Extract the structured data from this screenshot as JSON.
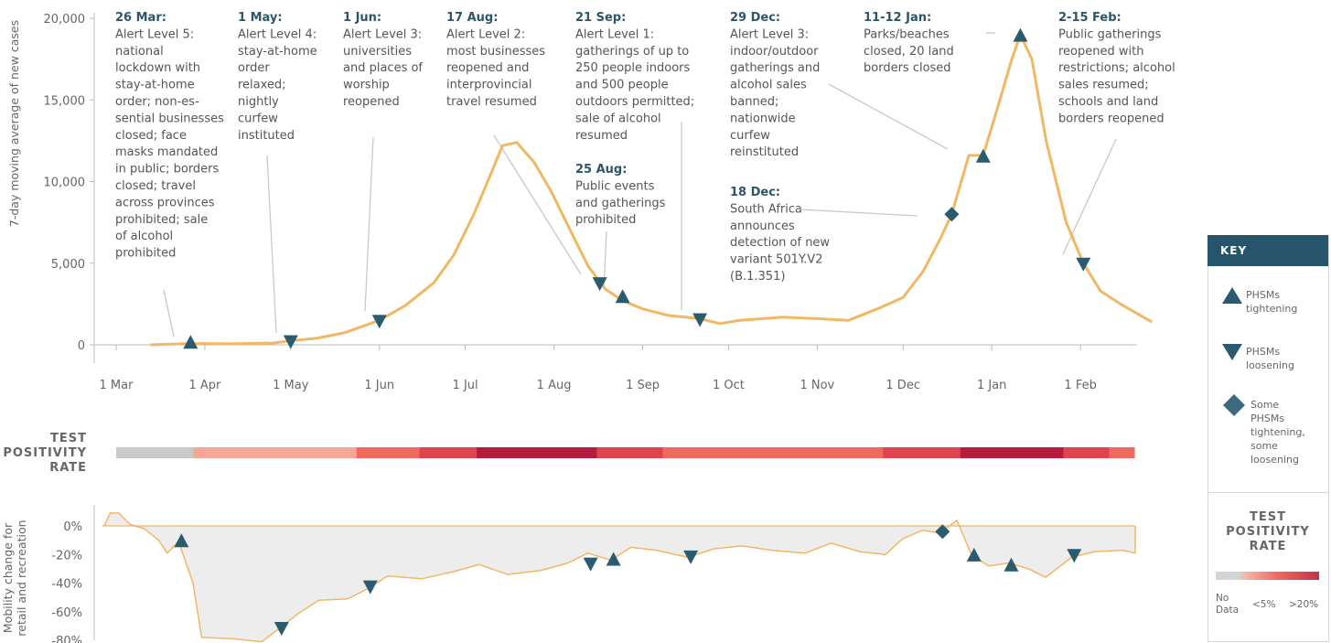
{
  "chart_data": [
    {
      "type": "line",
      "ylabel": "7-day moving average of new cases",
      "ylim": [
        0,
        20000
      ],
      "yticks": [
        {
          "v": 0,
          "label": "0"
        },
        {
          "v": 5000,
          "label": "5,000"
        },
        {
          "v": 10000,
          "label": "10,000"
        },
        {
          "v": 15000,
          "label": "15,000"
        },
        {
          "v": 20000,
          "label": "20,000"
        }
      ],
      "xlim": [
        "2020-03-01",
        "2021-02-28"
      ],
      "xticks": [
        {
          "date": "2020-03-01",
          "label": "1 Mar"
        },
        {
          "date": "2020-04-01",
          "label": "1 Apr"
        },
        {
          "date": "2020-05-01",
          "label": "1 May"
        },
        {
          "date": "2020-06-01",
          "label": "1 Jun"
        },
        {
          "date": "2020-07-01",
          "label": "1 Jul"
        },
        {
          "date": "2020-08-01",
          "label": "1 Aug"
        },
        {
          "date": "2020-09-01",
          "label": "1 Sep"
        },
        {
          "date": "2020-10-01",
          "label": "1 Oct"
        },
        {
          "date": "2020-11-01",
          "label": "1 Nov"
        },
        {
          "date": "2020-12-01",
          "label": "1 Dec"
        },
        {
          "date": "2021-01-01",
          "label": "1 Jan"
        },
        {
          "date": "2021-02-01",
          "label": "1 Feb"
        }
      ],
      "series": [
        {
          "color": "#f0b865",
          "points": [
            [
              "2020-03-13",
              0
            ],
            [
              "2020-03-26",
              80
            ],
            [
              "2020-04-10",
              60
            ],
            [
              "2020-04-25",
              110
            ],
            [
              "2020-05-01",
              250
            ],
            [
              "2020-05-10",
              400
            ],
            [
              "2020-05-20",
              750
            ],
            [
              "2020-06-01",
              1500
            ],
            [
              "2020-06-10",
              2400
            ],
            [
              "2020-06-20",
              3800
            ],
            [
              "2020-06-27",
              5500
            ],
            [
              "2020-07-04",
              8000
            ],
            [
              "2020-07-10",
              10500
            ],
            [
              "2020-07-14",
              12200
            ],
            [
              "2020-07-19",
              12400
            ],
            [
              "2020-07-25",
              11200
            ],
            [
              "2020-07-31",
              9400
            ],
            [
              "2020-08-07",
              6900
            ],
            [
              "2020-08-13",
              4800
            ],
            [
              "2020-08-19",
              3400
            ],
            [
              "2020-08-25",
              2700
            ],
            [
              "2020-09-01",
              2200
            ],
            [
              "2020-09-10",
              1800
            ],
            [
              "2020-09-21",
              1600
            ],
            [
              "2020-09-28",
              1300
            ],
            [
              "2020-10-05",
              1500
            ],
            [
              "2020-10-20",
              1700
            ],
            [
              "2020-11-01",
              1600
            ],
            [
              "2020-11-12",
              1500
            ],
            [
              "2020-11-22",
              2200
            ],
            [
              "2020-12-01",
              2900
            ],
            [
              "2020-12-08",
              4500
            ],
            [
              "2020-12-14",
              6500
            ],
            [
              "2020-12-18",
              8000
            ],
            [
              "2020-12-24",
              11600
            ],
            [
              "2020-12-29",
              11600
            ],
            [
              "2021-01-03",
              14500
            ],
            [
              "2021-01-08",
              17500
            ],
            [
              "2021-01-11",
              19000
            ],
            [
              "2021-01-15",
              17500
            ],
            [
              "2021-01-20",
              12500
            ],
            [
              "2021-01-27",
              7500
            ],
            [
              "2021-02-02",
              5000
            ],
            [
              "2021-02-08",
              3300
            ],
            [
              "2021-02-15",
              2500
            ],
            [
              "2021-02-22",
              1800
            ],
            [
              "2021-02-26",
              1400
            ]
          ]
        }
      ],
      "markers": [
        {
          "date": "2020-03-27",
          "value": 100,
          "type": "tightening"
        },
        {
          "date": "2020-05-01",
          "value": 250,
          "type": "loosening"
        },
        {
          "date": "2020-06-01",
          "value": 1500,
          "type": "loosening"
        },
        {
          "date": "2020-08-17",
          "value": 3800,
          "type": "loosening"
        },
        {
          "date": "2020-08-25",
          "value": 2900,
          "type": "tightening"
        },
        {
          "date": "2020-09-21",
          "value": 1600,
          "type": "loosening"
        },
        {
          "date": "2020-12-18",
          "value": 8000,
          "type": "mixed"
        },
        {
          "date": "2020-12-29",
          "value": 11500,
          "type": "tightening"
        },
        {
          "date": "2021-01-11",
          "value": 18900,
          "type": "tightening"
        },
        {
          "date": "2021-02-02",
          "value": 5000,
          "type": "loosening"
        }
      ],
      "annotations": [
        {
          "title": "26 Mar:",
          "lines": [
            "Alert Level 5:",
            "national",
            "lockdown with",
            "stay-at-home",
            "order; non-es-",
            "sential businesses",
            "closed; face",
            "masks mandated",
            "in public; borders",
            "closed; travel",
            "across provinces",
            "prohibited; sale",
            "of alcohol",
            "prohibited"
          ]
        },
        {
          "title": "1 May:",
          "lines": [
            "Alert Level 4:",
            "stay-at-home",
            "order",
            "relaxed;",
            "nightly",
            "curfew",
            "instituted"
          ]
        },
        {
          "title": "1 Jun:",
          "lines": [
            "Alert Level 3:",
            "universities",
            "and places of",
            "worship",
            "reopened"
          ]
        },
        {
          "title": "17 Aug:",
          "lines": [
            "Alert Level 2:",
            "most businesses",
            "reopened and",
            "interprovincial",
            "travel resumed"
          ]
        },
        {
          "title": "21 Sep:",
          "lines": [
            "Alert Level 1:",
            "gatherings of up to",
            "250 people indoors",
            "and 500 people",
            "outdoors permitted;",
            "sale of alcohol",
            "resumed"
          ]
        },
        {
          "title": "25 Aug:",
          "lines": [
            "Public events",
            "and gatherings",
            "prohibited"
          ]
        },
        {
          "title": "29 Dec:",
          "lines": [
            "Alert Level 3:",
            "indoor/outdoor",
            "gatherings and",
            "alcohol sales",
            "banned;",
            "nationwide",
            "curfew",
            "reinstituted"
          ]
        },
        {
          "title": "18 Dec:",
          "lines": [
            "South Africa",
            "announces",
            "detection of new",
            "variant 501Y.V2",
            "(B.1.351)"
          ]
        },
        {
          "title": "11-12 Jan:",
          "lines": [
            "Parks/beaches",
            "closed, 20 land",
            "borders closed"
          ]
        },
        {
          "title": "2-15 Feb:",
          "lines": [
            "Public gatherings",
            "reopened with",
            "restrictions; alcohol",
            "sales resumed;",
            "schools and land",
            "borders reopened"
          ]
        }
      ]
    },
    {
      "type": "heatmap",
      "title": "TEST POSITIVITY RATE",
      "segments": [
        {
          "start": "2020-03-01",
          "end": "2020-03-28",
          "color": "#c9c9c9"
        },
        {
          "start": "2020-03-28",
          "end": "2020-05-24",
          "color": "#f7a596"
        },
        {
          "start": "2020-05-24",
          "end": "2020-06-15",
          "color": "#ee6a5f"
        },
        {
          "start": "2020-06-15",
          "end": "2020-07-05",
          "color": "#e0444e"
        },
        {
          "start": "2020-07-05",
          "end": "2020-08-16",
          "color": "#b41c3f"
        },
        {
          "start": "2020-08-16",
          "end": "2020-09-08",
          "color": "#e0444e"
        },
        {
          "start": "2020-09-08",
          "end": "2020-11-24",
          "color": "#ee6a5f"
        },
        {
          "start": "2020-11-24",
          "end": "2020-12-21",
          "color": "#e0444e"
        },
        {
          "start": "2020-12-21",
          "end": "2021-01-26",
          "color": "#b41c3f"
        },
        {
          "start": "2021-01-26",
          "end": "2021-02-11",
          "color": "#e0444e"
        },
        {
          "start": "2021-02-11",
          "end": "2021-02-28",
          "color": "#ee6a5f"
        }
      ]
    },
    {
      "type": "area",
      "ylabel": "Mobility change for retail and recreation",
      "ylim": [
        -80,
        10
      ],
      "yticks": [
        {
          "v": 0,
          "label": "0%"
        },
        {
          "v": -20,
          "label": "-20%"
        },
        {
          "v": -40,
          "label": "-40%"
        },
        {
          "v": -60,
          "label": "-60%"
        },
        {
          "v": -80,
          "label": "-80%"
        }
      ],
      "series": [
        {
          "color": "#f0b865",
          "points": [
            [
              "2020-03-01",
              0
            ],
            [
              "2020-03-03",
              9
            ],
            [
              "2020-03-06",
              9
            ],
            [
              "2020-03-10",
              1
            ],
            [
              "2020-03-15",
              -2
            ],
            [
              "2020-03-20",
              -10
            ],
            [
              "2020-03-23",
              -19
            ],
            [
              "2020-03-27",
              -11
            ],
            [
              "2020-04-01",
              -40
            ],
            [
              "2020-04-04",
              -78
            ],
            [
              "2020-04-15",
              -79
            ],
            [
              "2020-04-25",
              -81
            ],
            [
              "2020-05-01",
              -72
            ],
            [
              "2020-05-08",
              -61
            ],
            [
              "2020-05-15",
              -52
            ],
            [
              "2020-05-25",
              -51
            ],
            [
              "2020-06-01",
              -44
            ],
            [
              "2020-06-08",
              -35
            ],
            [
              "2020-06-20",
              -37
            ],
            [
              "2020-07-01",
              -32
            ],
            [
              "2020-07-10",
              -27
            ],
            [
              "2020-07-20",
              -34
            ],
            [
              "2020-08-01",
              -31
            ],
            [
              "2020-08-10",
              -26
            ],
            [
              "2020-08-17",
              -19
            ],
            [
              "2020-08-25",
              -24
            ],
            [
              "2020-09-01",
              -15
            ],
            [
              "2020-09-10",
              -17
            ],
            [
              "2020-09-21",
              -22
            ],
            [
              "2020-09-30",
              -16
            ],
            [
              "2020-10-10",
              -14
            ],
            [
              "2020-10-20",
              -17
            ],
            [
              "2020-11-01",
              -19
            ],
            [
              "2020-11-10",
              -12
            ],
            [
              "2020-11-20",
              -18
            ],
            [
              "2020-11-29",
              -20
            ],
            [
              "2020-12-05",
              -9
            ],
            [
              "2020-12-12",
              -3
            ],
            [
              "2020-12-18",
              -5
            ],
            [
              "2020-12-24",
              4
            ],
            [
              "2020-12-29",
              -20
            ],
            [
              "2021-01-04",
              -28
            ],
            [
              "2021-01-11",
              -26
            ],
            [
              "2021-01-18",
              -30
            ],
            [
              "2021-01-24",
              -36
            ],
            [
              "2021-02-02",
              -22
            ],
            [
              "2021-02-10",
              -18
            ],
            [
              "2021-02-20",
              -17
            ],
            [
              "2021-02-25",
              -19
            ],
            [
              "2021-02-28",
              0
            ]
          ]
        }
      ],
      "markers": [
        {
          "date": "2020-03-27",
          "value": -11,
          "type": "tightening"
        },
        {
          "date": "2020-05-01",
          "value": -71,
          "type": "loosening"
        },
        {
          "date": "2020-06-01",
          "value": -42,
          "type": "loosening"
        },
        {
          "date": "2020-08-17",
          "value": -26,
          "type": "loosening"
        },
        {
          "date": "2020-08-25",
          "value": -24,
          "type": "tightening"
        },
        {
          "date": "2020-09-21",
          "value": -21,
          "type": "loosening"
        },
        {
          "date": "2020-12-18",
          "value": -4,
          "type": "mixed"
        },
        {
          "date": "2020-12-29",
          "value": -21,
          "type": "tightening"
        },
        {
          "date": "2021-01-11",
          "value": -28,
          "type": "tightening"
        },
        {
          "date": "2021-02-02",
          "value": -20,
          "type": "loosening"
        }
      ]
    }
  ],
  "key": {
    "title": "KEY",
    "tightening": "PHSMs tightening",
    "loosening": "PHSMs loosening",
    "mixed": "Some PHSMs tightening, some loosening",
    "tpr_title": "TEST POSITIVITY RATE",
    "no_data": "No Data",
    "low": "<5%",
    "high": ">20%"
  },
  "colors": {
    "marker": "#2b5b6e",
    "line": "#f0b865",
    "area": "#ededed"
  }
}
